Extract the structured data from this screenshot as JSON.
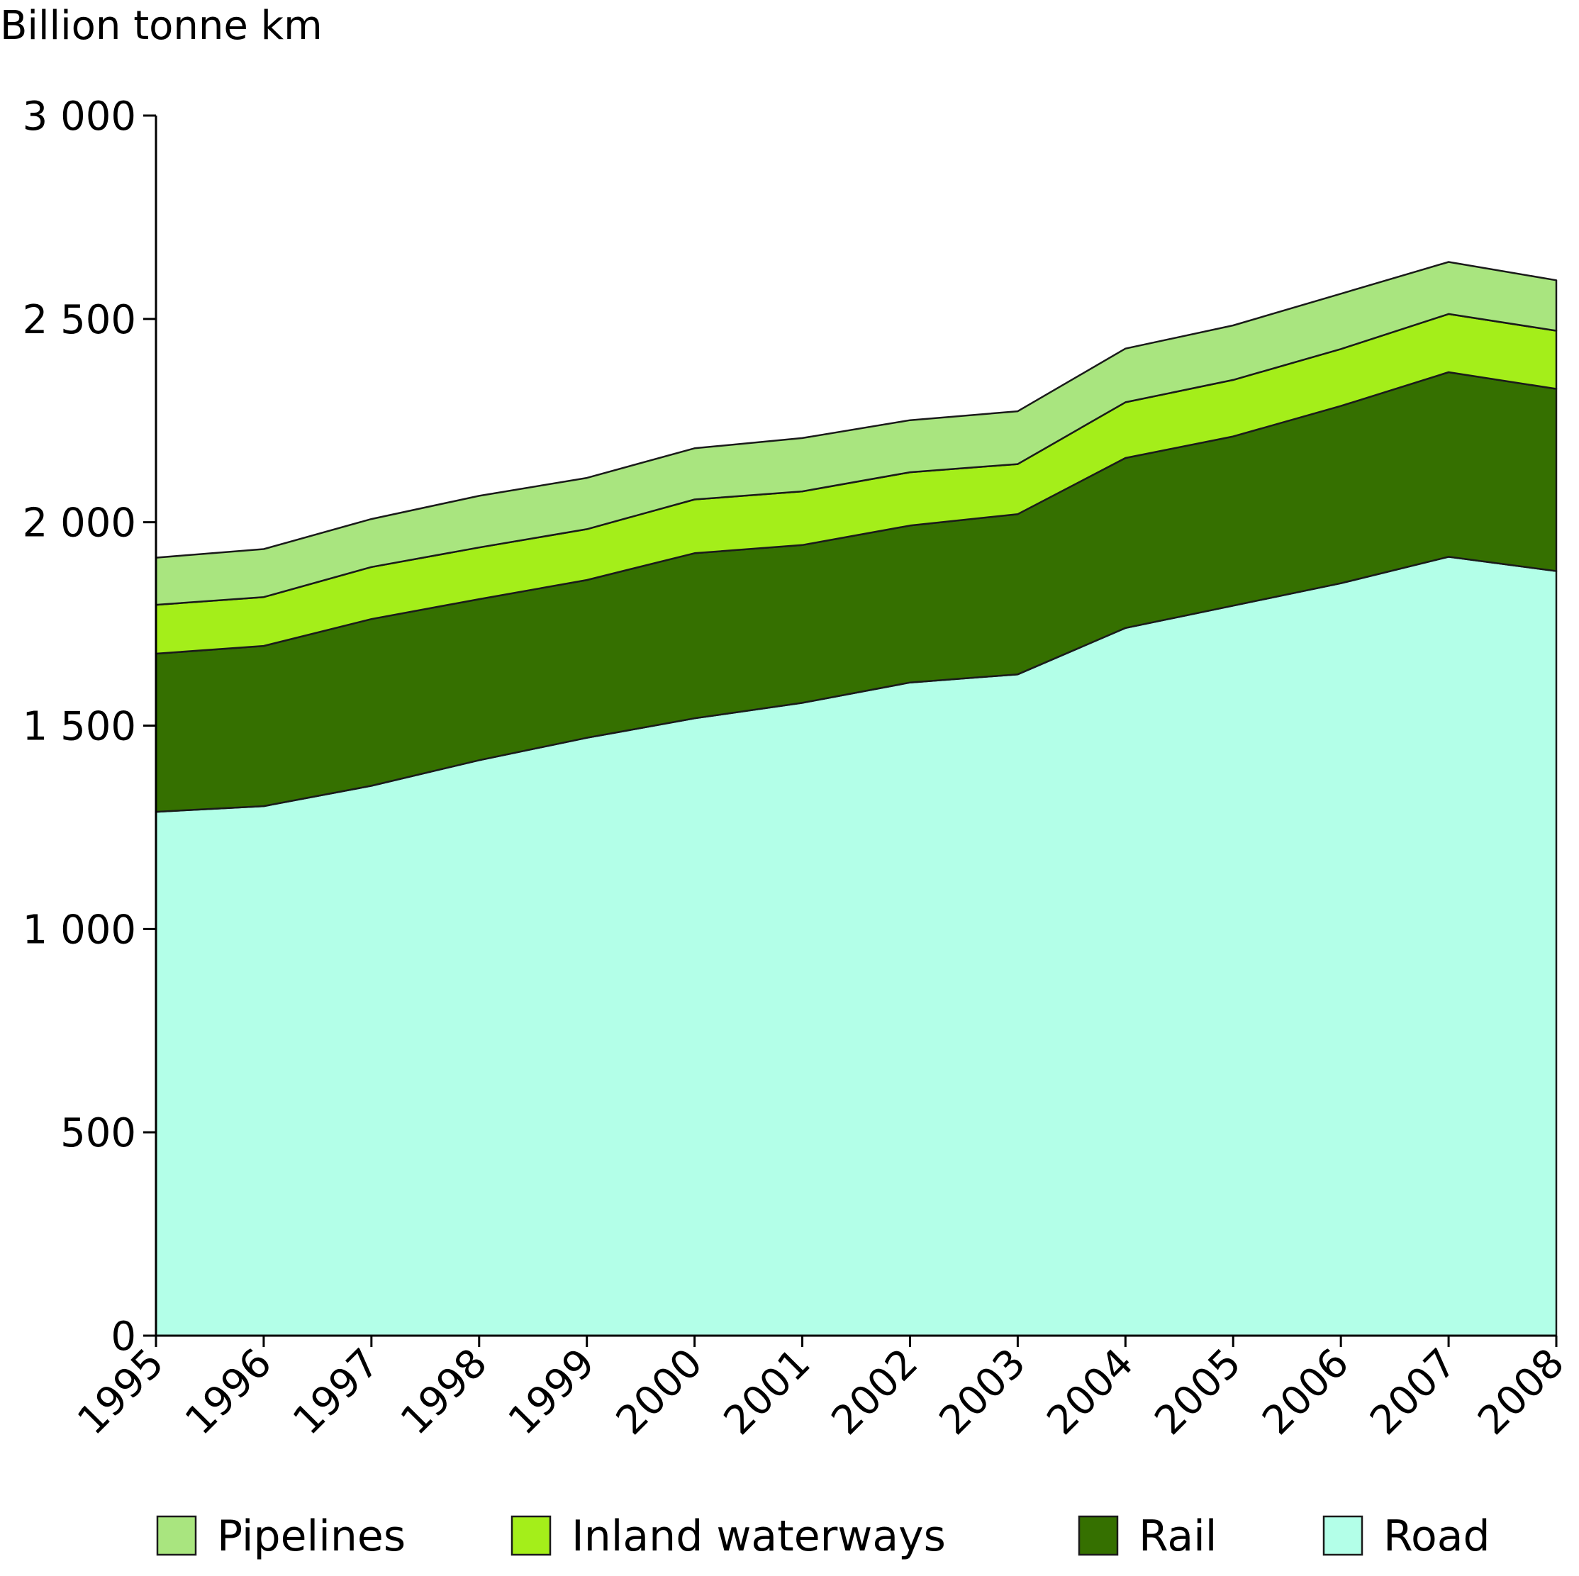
{
  "chart_data": {
    "type": "area",
    "stacked": true,
    "ylabel": "Billion tonne km",
    "xlabel": "",
    "ylim": [
      0,
      3000
    ],
    "yticks": [
      0,
      500,
      1000,
      1500,
      2000,
      2500,
      3000
    ],
    "ytick_labels": [
      "0",
      "500",
      "1 000",
      "1 500",
      "2 000",
      "2 500",
      "3 000"
    ],
    "categories": [
      "1995",
      "1996",
      "1997",
      "1998",
      "1999",
      "2000",
      "2001",
      "2002",
      "2003",
      "2004",
      "2005",
      "2006",
      "2007",
      "2008"
    ],
    "grid": false,
    "legend_position": "bottom",
    "series": [
      {
        "name": "Road",
        "color": "#b3ffe8",
        "values": [
          1288,
          1302,
          1352,
          1415,
          1470,
          1518,
          1556,
          1606,
          1626,
          1740,
          1795,
          1850,
          1915,
          1880
        ]
      },
      {
        "name": "Rail",
        "color": "#357000",
        "values": [
          389,
          394,
          410,
          396,
          388,
          406,
          388,
          386,
          394,
          418,
          416,
          436,
          454,
          448
        ]
      },
      {
        "name": "Inland waterways",
        "color": "#a4ee1a",
        "values": [
          120,
          120,
          128,
          127,
          125,
          132,
          132,
          131,
          123,
          137,
          139,
          140,
          143,
          143
        ]
      },
      {
        "name": "Pipelines",
        "color": "#a9e57f",
        "values": [
          116,
          118,
          118,
          127,
          126,
          126,
          131,
          128,
          130,
          132,
          134,
          136,
          128,
          124
        ]
      }
    ],
    "legend_order": [
      "Pipelines",
      "Inland waterways",
      "Rail",
      "Road"
    ]
  }
}
